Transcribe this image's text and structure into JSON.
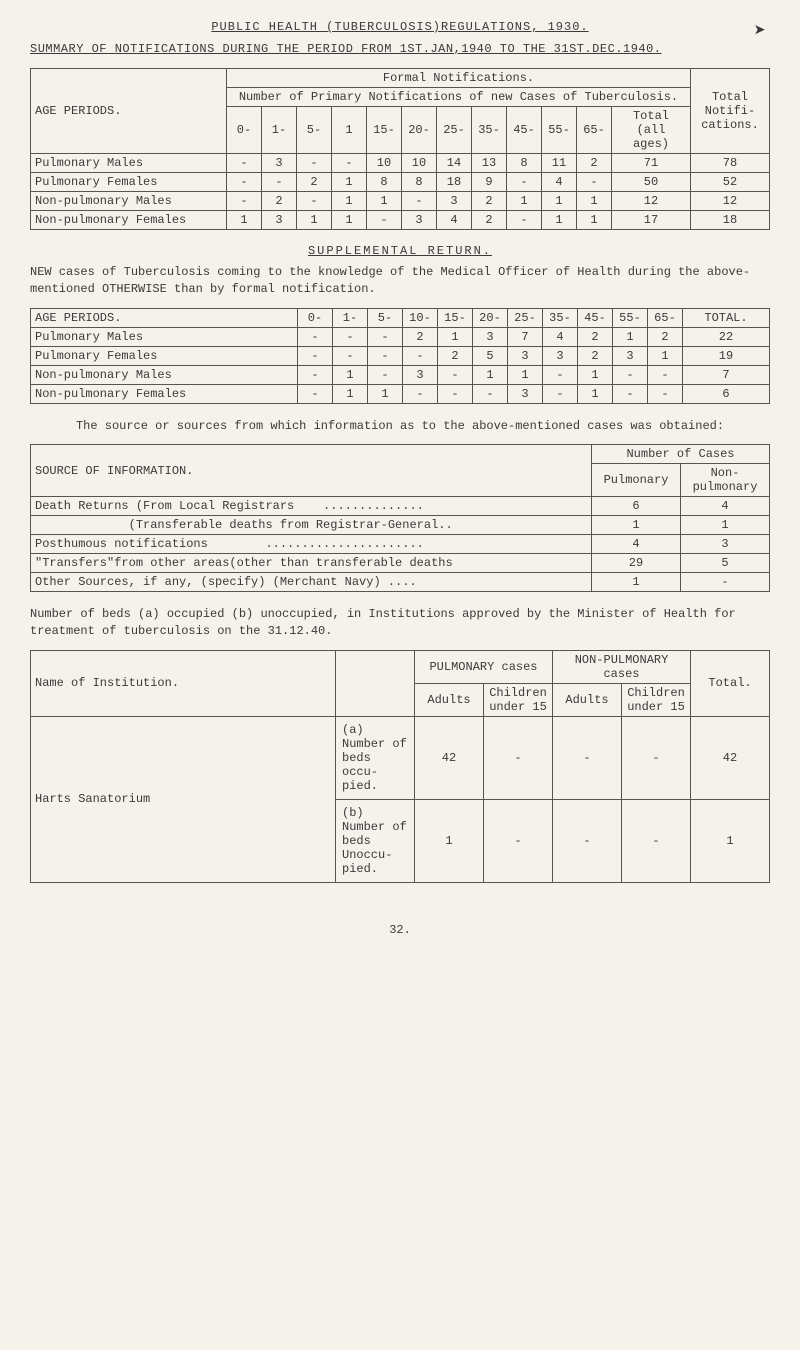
{
  "title": "PUBLIC HEALTH (TUBERCULOSIS)REGULATIONS, 1930.",
  "subtitle": "SUMMARY OF NOTIFICATIONS DURING THE PERIOD FROM 1ST.JAN,1940 TO THE 31ST.DEC.1940.",
  "table1": {
    "header_main": "Formal Notifications.",
    "header_sub": "Number of Primary Notifications of new Cases of Tuberculosis.",
    "age_periods": "AGE PERIODS.",
    "total_notifi": "Total Notifi-cations.",
    "cols": [
      "0-",
      "1-",
      "5-",
      "1",
      "15-",
      "20-",
      "25-",
      "35-",
      "45-",
      "55-",
      "65-",
      "Total (all ages)"
    ],
    "rows": [
      {
        "label": "Pulmonary Males",
        "cells": [
          "-",
          "3",
          "-",
          "-",
          "10",
          "10",
          "14",
          "13",
          "8",
          "11",
          "2",
          "71",
          "78"
        ]
      },
      {
        "label": "Pulmonary Females",
        "cells": [
          "-",
          "-",
          "2",
          "1",
          "8",
          "8",
          "18",
          "9",
          "-",
          "4",
          "-",
          "50",
          "52"
        ]
      },
      {
        "label": "Non-pulmonary Males",
        "cells": [
          "-",
          "2",
          "-",
          "1",
          "1",
          "-",
          "3",
          "2",
          "1",
          "1",
          "1",
          "12",
          "12"
        ]
      },
      {
        "label": "Non-pulmonary Females",
        "cells": [
          "1",
          "3",
          "1",
          "1",
          "-",
          "3",
          "4",
          "2",
          "-",
          "1",
          "1",
          "17",
          "18"
        ]
      }
    ]
  },
  "supplemental_heading": "SUPPLEMENTAL RETURN.",
  "supplemental_para": "NEW cases of Tuberculosis coming to the knowledge of the Medical Officer of Health during the above-mentioned OTHERWISE than by formal notification.",
  "table2": {
    "age_periods": "AGE PERIODS.",
    "total": "TOTAL.",
    "cols": [
      "0-",
      "1-",
      "5-",
      "10-",
      "15-",
      "20-",
      "25-",
      "35-",
      "45-",
      "55-",
      "65-"
    ],
    "rows": [
      {
        "label": "Pulmonary Males",
        "cells": [
          "-",
          "-",
          "-",
          "2",
          "1",
          "3",
          "7",
          "4",
          "2",
          "1",
          "2",
          "22"
        ]
      },
      {
        "label": "Pulmonary Females",
        "cells": [
          "-",
          "-",
          "-",
          "-",
          "2",
          "5",
          "3",
          "3",
          "2",
          "3",
          "1",
          "19"
        ]
      },
      {
        "label": "Non-pulmonary Males",
        "cells": [
          "-",
          "1",
          "-",
          "3",
          "-",
          "1",
          "1",
          "-",
          "1",
          "-",
          "-",
          "7"
        ]
      },
      {
        "label": "Non-pulmonary Females",
        "cells": [
          "-",
          "1",
          "1",
          "-",
          "-",
          "-",
          "3",
          "-",
          "1",
          "-",
          "-",
          "6"
        ]
      }
    ]
  },
  "source_para": "The source or sources from which information as to the above-mentioned cases was obtained:",
  "table3": {
    "header_source": "SOURCE OF INFORMATION.",
    "header_num": "Number of Cases",
    "col_pulm": "Pulmonary",
    "col_nonpulm": "Non-pulmonary",
    "rows": [
      {
        "label": "Death Returns (From Local Registrars    ..............",
        "pulm": "6",
        "nonpulm": "4"
      },
      {
        "label": "             (Transferable deaths from Registrar-General..",
        "pulm": "1",
        "nonpulm": "1"
      },
      {
        "label": "Posthumous notifications        ......................",
        "pulm": "4",
        "nonpulm": "3"
      },
      {
        "label": "\"Transfers\"from other areas(other than transferable deaths",
        "pulm": "29",
        "nonpulm": "5"
      },
      {
        "label": "Other Sources, if any, (specify) (Merchant Navy) ....",
        "pulm": "1",
        "nonpulm": "-"
      }
    ]
  },
  "beds_para": "Number of beds (a) occupied (b) unoccupied, in Institutions approved by the Minister of Health for treatment of tuberculosis on the 31.12.40.",
  "table4": {
    "name_inst": "Name of Institution.",
    "pulm_cases": "PULMONARY cases",
    "nonpulm_cases": "NON-PULMONARY cases",
    "total": "Total.",
    "adults": "Adults",
    "children": "Children under 15",
    "inst": "Harts  Sanatorium",
    "row_a_label": "(a)\nNumber of beds occu-pied.",
    "row_a": [
      "42",
      "-",
      "-",
      "-",
      "42"
    ],
    "row_b_label": "(b)\nNumber of beds Unoccu-pied.",
    "row_b": [
      "1",
      "-",
      "-",
      "-",
      "1"
    ]
  },
  "page_num": "32."
}
